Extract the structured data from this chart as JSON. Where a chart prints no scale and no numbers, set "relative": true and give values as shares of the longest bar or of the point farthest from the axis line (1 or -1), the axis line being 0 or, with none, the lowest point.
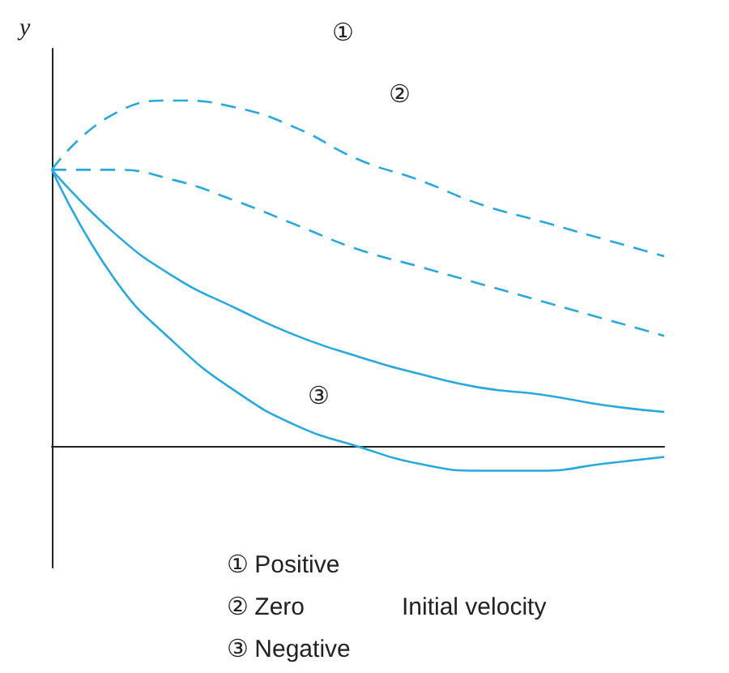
{
  "chart_data": {
    "type": "line",
    "relative": true,
    "ylabel": "y",
    "grid": false,
    "categories": [
      null,
      null,
      null,
      null,
      null,
      null,
      null,
      null,
      null,
      null,
      null
    ],
    "series": [
      {
        "color": "#29a8e0",
        "line_style": "dashed",
        "values": [
          0.8,
          0.96,
          1.0,
          0.98,
          0.92,
          0.83,
          0.77,
          0.7,
          0.65,
          0.6,
          0.55
        ]
      },
      {
        "color": "#29a8e0",
        "line_style": "dashed",
        "values": [
          0.8,
          0.8,
          0.77,
          0.71,
          0.64,
          0.57,
          0.52,
          0.47,
          0.42,
          0.37,
          0.32
        ]
      },
      {
        "color": "#29a8e0",
        "line_style": "solid",
        "values": [
          0.8,
          0.62,
          0.49,
          0.4,
          0.32,
          0.26,
          0.21,
          0.17,
          0.15,
          0.12,
          0.1
        ]
      },
      {
        "color": "#29a8e0",
        "line_style": "solid",
        "values": [
          0.8,
          0.49,
          0.3,
          0.16,
          0.06,
          0.0,
          -0.05,
          -0.07,
          -0.07,
          -0.05,
          -0.03
        ]
      }
    ],
    "annotations": [
      "①",
      "②",
      "③",
      "① Positive",
      "② Zero",
      "③ Negative",
      "Initial velocity"
    ]
  }
}
